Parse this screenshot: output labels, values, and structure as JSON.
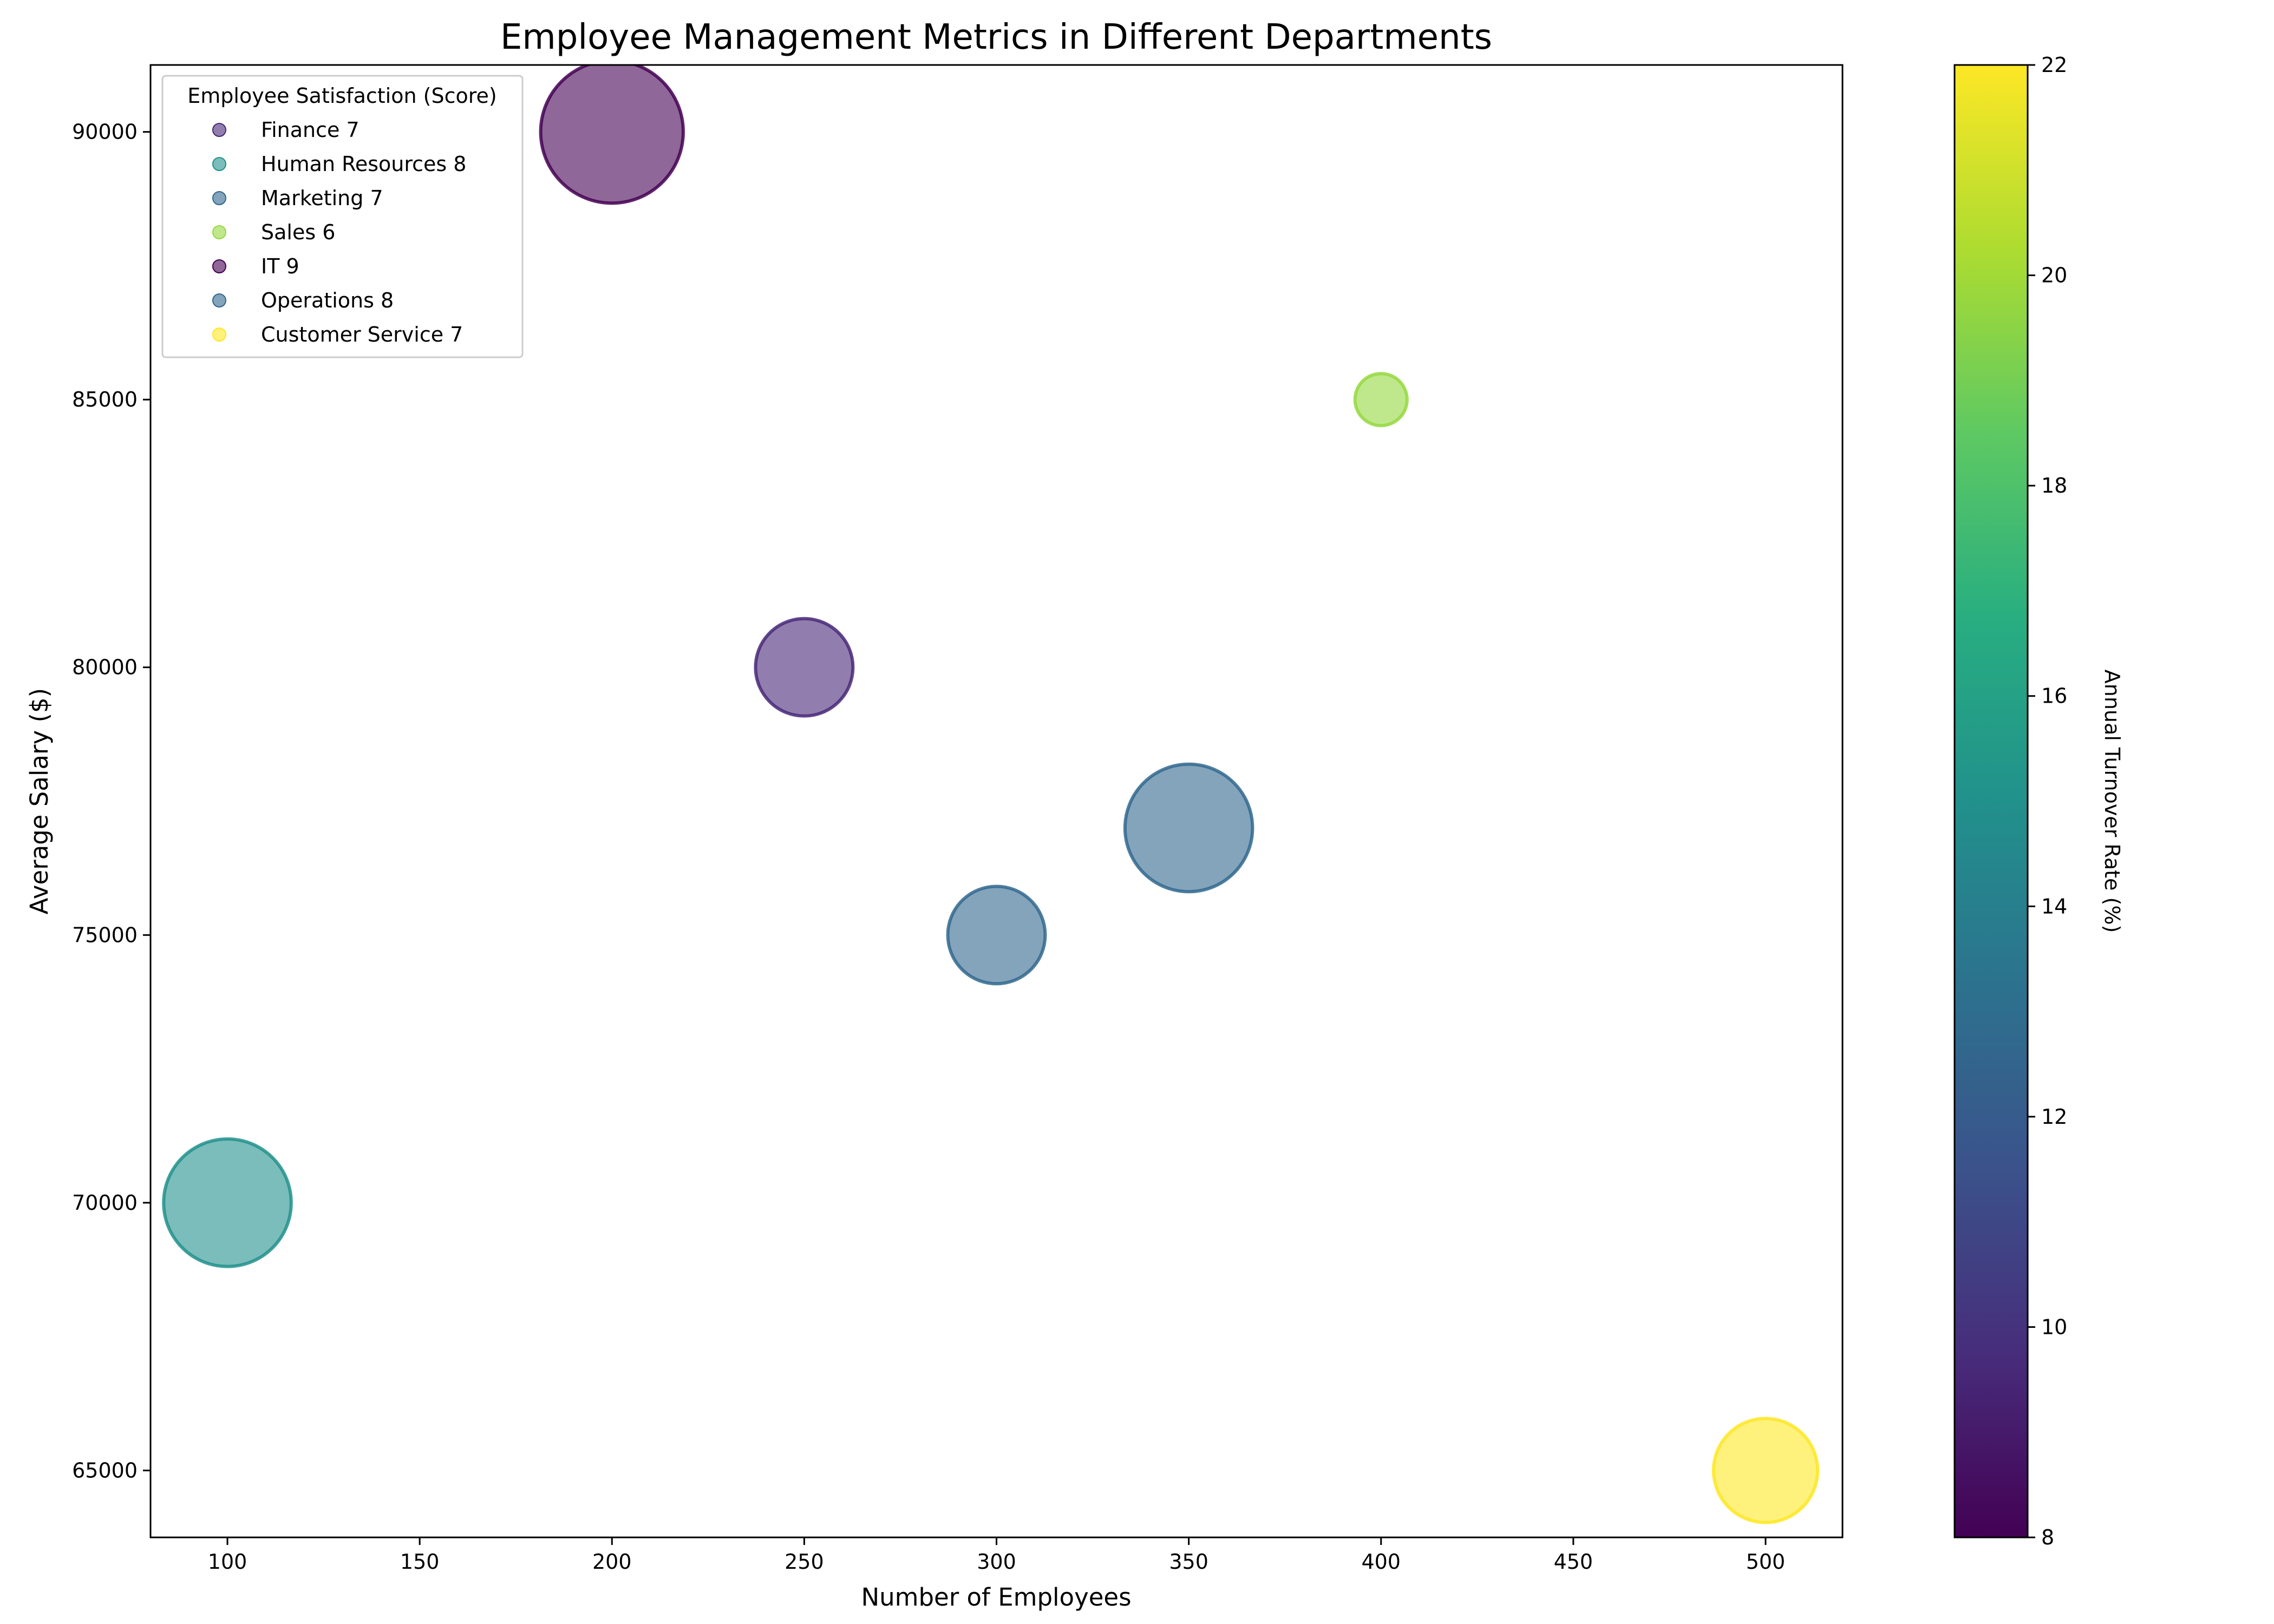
{
  "chart_data": {
    "type": "scatter",
    "title": "Employee Management Metrics in Different Departments",
    "xlabel": "Number of Employees",
    "ylabel": "Average Salary ($)",
    "xlim": [
      80,
      520
    ],
    "ylim": [
      63750,
      91250
    ],
    "x_ticks": [
      100,
      150,
      200,
      250,
      300,
      350,
      400,
      450,
      500
    ],
    "y_ticks": [
      65000,
      70000,
      75000,
      80000,
      85000,
      90000
    ],
    "grid": false,
    "colorbar": {
      "label": "Annual Turnover Rate (%)",
      "range": [
        8,
        22
      ],
      "ticks": [
        8,
        10,
        12,
        14,
        16,
        18,
        20,
        22
      ],
      "colormap": "viridis"
    },
    "legend": {
      "title": "Employee Satisfaction (Score)",
      "placement": "top-left"
    },
    "points": [
      {
        "label": "Finance 7",
        "department": "Finance",
        "satisfaction": 7,
        "x": 250,
        "y": 80000,
        "turnover": 10,
        "size": 7,
        "color": "#482878"
      },
      {
        "label": "Human Resources 8",
        "department": "Human Resources",
        "satisfaction": 8,
        "x": 100,
        "y": 70000,
        "turnover": 15,
        "size": 12,
        "color": "#21918c"
      },
      {
        "label": "Marketing 7",
        "department": "Marketing",
        "satisfaction": 7,
        "x": 350,
        "y": 77000,
        "turnover": 12,
        "size": 12,
        "color": "#31688e"
      },
      {
        "label": "Sales 6",
        "department": "Sales",
        "satisfaction": 6,
        "x": 400,
        "y": 85000,
        "turnover": 20,
        "size": 2,
        "color": "#95d840"
      },
      {
        "label": "IT 9",
        "department": "IT",
        "satisfaction": 9,
        "x": 200,
        "y": 90000,
        "turnover": 8.5,
        "size": 15,
        "color": "#440154"
      },
      {
        "label": "Operations 8",
        "department": "Operations",
        "satisfaction": 8,
        "x": 300,
        "y": 75000,
        "turnover": 12,
        "size": 7,
        "color": "#31688e"
      },
      {
        "label": "Customer Service 7",
        "department": "Customer Service",
        "satisfaction": 7,
        "x": 500,
        "y": 65000,
        "turnover": 22,
        "size": 8,
        "color": "#fde725"
      }
    ]
  }
}
